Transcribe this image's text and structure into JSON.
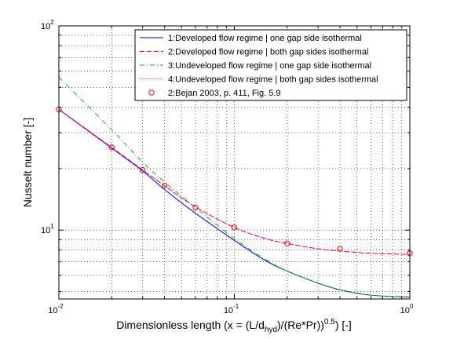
{
  "chart_data": {
    "type": "line",
    "xscale": "log",
    "yscale": "log",
    "xlim": [
      0.01,
      1
    ],
    "ylim": [
      4.6,
      100
    ],
    "grid": true,
    "legend_position": "top-right",
    "xlabel_parts": {
      "a": "Dimensionless length (x = (L/d",
      "a_sub": "hyd",
      "b": ")/(Re*Pr))",
      "b_sup": "0.5",
      "c": ") [-]"
    },
    "ylabel": "Nusselt number [-]",
    "x_ticks": [
      {
        "base": "10",
        "exp": "-2",
        "value": 0.01
      },
      {
        "base": "10",
        "exp": "-1",
        "value": 0.1
      },
      {
        "base": "10",
        "exp": "0",
        "value": 1
      }
    ],
    "y_ticks": [
      {
        "base": "10",
        "exp": "1",
        "value": 10
      },
      {
        "base": "10",
        "exp": "2",
        "value": 100
      }
    ],
    "series": [
      {
        "name": "1:Developed flow regime | one gap side isothermal",
        "color": "#0000ff",
        "dash": "solid",
        "x": [
          0.01,
          0.02,
          0.03,
          0.04,
          0.06,
          0.1,
          0.15,
          0.2,
          0.3,
          0.4,
          0.6,
          1.0
        ],
        "y": [
          39.0,
          25.2,
          19.5,
          15.8,
          12.1,
          8.9,
          7.1,
          6.3,
          5.5,
          5.1,
          4.8,
          4.7
        ]
      },
      {
        "name": "2:Developed flow regime | both gap sides isothermal",
        "color": "#ff0000",
        "dash": "dashed",
        "x": [
          0.01,
          0.02,
          0.03,
          0.04,
          0.06,
          0.1,
          0.15,
          0.2,
          0.3,
          0.4,
          0.6,
          1.0
        ],
        "y": [
          39.0,
          25.4,
          19.7,
          16.5,
          13.0,
          10.3,
          9.1,
          8.6,
          8.1,
          7.9,
          7.7,
          7.6
        ]
      },
      {
        "name": "3:Undeveloped flow regime | one gap side isothermal",
        "color": "#00bb00",
        "dash": "dashdot",
        "x": [
          0.01,
          0.02,
          0.03,
          0.04,
          0.06,
          0.1,
          0.15,
          0.2,
          0.3,
          0.4,
          0.6,
          1.0
        ],
        "y": [
          56.0,
          31.0,
          21.5,
          17.2,
          12.9,
          9.1,
          7.2,
          6.3,
          5.5,
          5.1,
          4.8,
          4.7
        ]
      },
      {
        "name": "4:Undeveloped flow regime | both gap sides isothermal",
        "color": "#ff00ff",
        "dash": "dotted",
        "x": [
          0.01,
          0.02,
          0.03,
          0.04,
          0.06,
          0.1,
          0.15,
          0.2,
          0.3,
          0.4,
          0.6,
          1.0
        ],
        "y": [
          39.0,
          25.4,
          19.7,
          16.5,
          13.0,
          10.3,
          9.1,
          8.6,
          8.1,
          7.9,
          7.7,
          7.6
        ]
      },
      {
        "name": "2:Bejan 2003, p. 411, Fig. 5.9",
        "color": "#ff0000",
        "marker": "circle",
        "x": [
          0.01,
          0.02,
          0.03,
          0.04,
          0.06,
          0.1,
          0.2,
          0.4,
          1.0
        ],
        "y": [
          39.0,
          25.4,
          19.7,
          16.5,
          12.9,
          10.3,
          8.6,
          8.1,
          7.7
        ]
      }
    ]
  }
}
